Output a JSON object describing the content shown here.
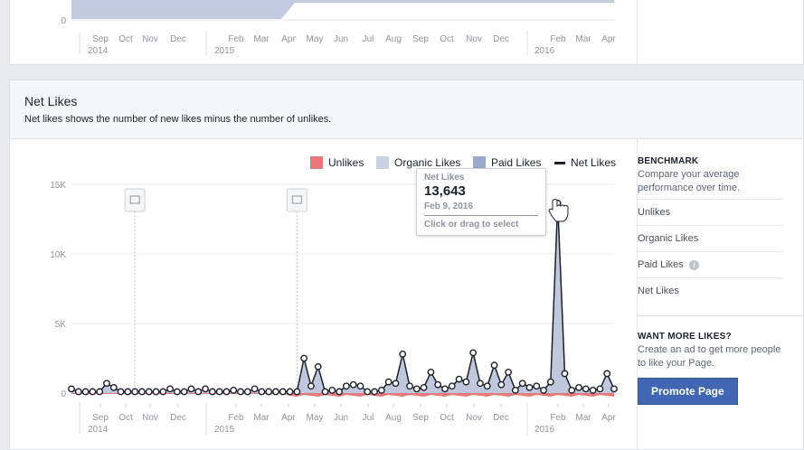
{
  "top_panel": {
    "y_tick": "0",
    "months": [
      "Sep",
      "Oct",
      "Nov",
      "Dec",
      "Feb",
      "Mar",
      "Apr",
      "May",
      "Jun",
      "Jul",
      "Aug",
      "Sep",
      "Oct",
      "Nov",
      "Dec",
      "Feb",
      "Mar",
      "Apr"
    ],
    "years": [
      "2014",
      "2015",
      "2016"
    ]
  },
  "section": {
    "title": "Net Likes",
    "subtitle": "Net likes shows the number of new likes minus the number of unlikes."
  },
  "legend": [
    {
      "label": "Unlikes",
      "color": "#e9787d"
    },
    {
      "label": "Organic Likes",
      "color": "#c9d1e3"
    },
    {
      "label": "Paid Likes",
      "color": "#9aaac9"
    },
    {
      "label": "Net Likes",
      "color": "#1d2129"
    }
  ],
  "tooltip": {
    "title": "Net Likes",
    "value": "13,643",
    "date": "Feb 9, 2016",
    "hint": "Click or drag to select"
  },
  "benchmark": {
    "heading": "BENCHMARK",
    "description": "Compare your average performance over time.",
    "items": [
      "Unlikes",
      "Organic Likes",
      "Paid Likes",
      "Net Likes"
    ]
  },
  "promo": {
    "heading": "WANT MORE LIKES?",
    "description": "Create an ad to get more people to like your Page.",
    "button": "Promote Page"
  },
  "colors": {
    "accent": "#4267b2",
    "unlikes": "#e9787d",
    "organic": "#c9d1e3",
    "paid": "#9aaac9",
    "net": "#1d2129"
  },
  "chart_data": {
    "type": "area",
    "title": "Net Likes",
    "ylim": [
      0,
      15000
    ],
    "y_ticks": [
      "0",
      "5K",
      "10K",
      "15K"
    ],
    "x_tick_labels": [
      "Sep",
      "Oct",
      "Nov",
      "Dec",
      "Feb",
      "Mar",
      "Apr",
      "May",
      "Jun",
      "Jul",
      "Aug",
      "Sep",
      "Oct",
      "Nov",
      "Dec",
      "Feb",
      "Mar",
      "Apr"
    ],
    "year_labels": [
      "2014",
      "2015",
      "2016"
    ],
    "series": [
      {
        "name": "Net Likes",
        "values": [
          300,
          100,
          100,
          100,
          100,
          700,
          400,
          100,
          100,
          100,
          100,
          100,
          100,
          100,
          300,
          100,
          100,
          300,
          100,
          300,
          100,
          100,
          100,
          200,
          100,
          100,
          300,
          100,
          100,
          100,
          100,
          100,
          100,
          2500,
          500,
          1900,
          100,
          200,
          100,
          500,
          600,
          500,
          100,
          100,
          200,
          800,
          700,
          2800,
          500,
          300,
          400,
          1500,
          600,
          300,
          500,
          1000,
          800,
          2900,
          700,
          500,
          2000,
          600,
          1500,
          200,
          700,
          400,
          500,
          200,
          800,
          13643,
          1400,
          200,
          400,
          300,
          200,
          300,
          1400,
          300
        ]
      }
    ],
    "annotations": [
      {
        "series_index": 9,
        "label": "calendar-marker"
      },
      {
        "series_index": 32,
        "label": "calendar-marker"
      }
    ]
  }
}
